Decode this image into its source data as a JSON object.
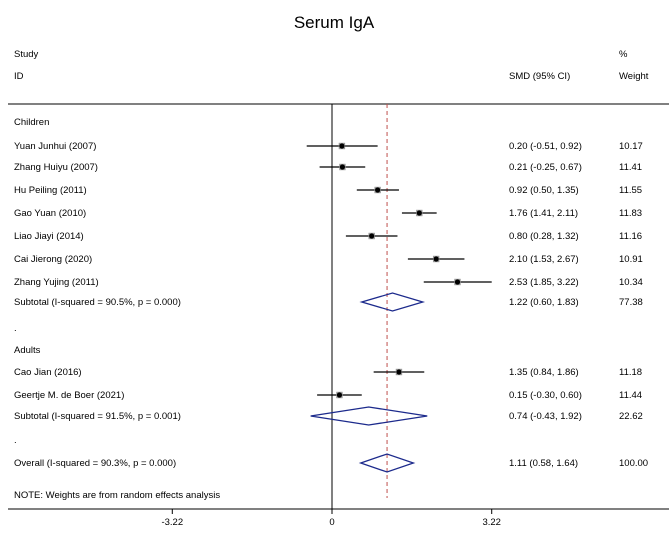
{
  "chart_data": {
    "type": "forest",
    "title": "Serum IgA",
    "header": {
      "study": "Study",
      "id": "ID",
      "smd": "SMD (95% CI)",
      "pct": "%",
      "weight": "Weight"
    },
    "xaxis": {
      "ticks": [
        -3.22,
        0,
        3.22
      ],
      "tick_labels": [
        "-3.22",
        "0",
        "3.22"
      ],
      "range": [
        -5.9,
        6.5
      ]
    },
    "overall_estimate": 1.11,
    "rows": [
      {
        "kind": "group",
        "label": "Children"
      },
      {
        "kind": "study",
        "label": "Yuan Junhui (2007)",
        "est": 0.2,
        "lo": -0.51,
        "hi": 0.92,
        "ci_text": "0.20 (-0.51, 0.92)",
        "weight": "10.17"
      },
      {
        "kind": "study",
        "label": "Zhang Huiyu (2007)",
        "est": 0.21,
        "lo": -0.25,
        "hi": 0.67,
        "ci_text": "0.21 (-0.25, 0.67)",
        "weight": "11.41"
      },
      {
        "kind": "study",
        "label": "Hu Peiling (2011)",
        "est": 0.92,
        "lo": 0.5,
        "hi": 1.35,
        "ci_text": "0.92 (0.50, 1.35)",
        "weight": "11.55"
      },
      {
        "kind": "study",
        "label": "Gao Yuan (2010)",
        "est": 1.76,
        "lo": 1.41,
        "hi": 2.11,
        "ci_text": "1.76 (1.41, 2.11)",
        "weight": "11.83"
      },
      {
        "kind": "study",
        "label": "Liao Jiayi (2014)",
        "est": 0.8,
        "lo": 0.28,
        "hi": 1.32,
        "ci_text": "0.80 (0.28, 1.32)",
        "weight": "11.16"
      },
      {
        "kind": "study",
        "label": "Cai Jierong (2020)",
        "est": 2.1,
        "lo": 1.53,
        "hi": 2.67,
        "ci_text": "2.10 (1.53, 2.67)",
        "weight": "10.91"
      },
      {
        "kind": "study",
        "label": "Zhang Yujing (2011)",
        "est": 2.53,
        "lo": 1.85,
        "hi": 3.22,
        "ci_text": "2.53 (1.85, 3.22)",
        "weight": "10.34"
      },
      {
        "kind": "subtotal",
        "label": "Subtotal  (I-squared = 90.5%, p = 0.000)",
        "est": 1.22,
        "lo": 0.6,
        "hi": 1.83,
        "ci_text": "1.22 (0.60, 1.83)",
        "weight": "77.38"
      },
      {
        "kind": "spacer",
        "label": "."
      },
      {
        "kind": "group",
        "label": "Adults"
      },
      {
        "kind": "study",
        "label": "Cao Jian (2016)",
        "est": 1.35,
        "lo": 0.84,
        "hi": 1.86,
        "ci_text": "1.35 (0.84, 1.86)",
        "weight": "11.18"
      },
      {
        "kind": "study",
        "label": "Geertje M. de Boer (2021)",
        "est": 0.15,
        "lo": -0.3,
        "hi": 0.6,
        "ci_text": "0.15 (-0.30, 0.60)",
        "weight": "11.44"
      },
      {
        "kind": "subtotal",
        "label": "Subtotal  (I-squared = 91.5%, p = 0.001)",
        "est": 0.74,
        "lo": -0.43,
        "hi": 1.92,
        "ci_text": "0.74 (-0.43, 1.92)",
        "weight": "22.62"
      },
      {
        "kind": "spacer",
        "label": "."
      },
      {
        "kind": "overall",
        "label": "Overall  (I-squared = 90.3%, p = 0.000)",
        "est": 1.11,
        "lo": 0.58,
        "hi": 1.64,
        "ci_text": "1.11 (0.58, 1.64)",
        "weight": "100.00"
      }
    ],
    "note": "NOTE: Weights are from random effects analysis",
    "colors": {
      "diamond": "#1c2a8c",
      "reference_line": "#c0504d",
      "axis": "#000000"
    }
  }
}
